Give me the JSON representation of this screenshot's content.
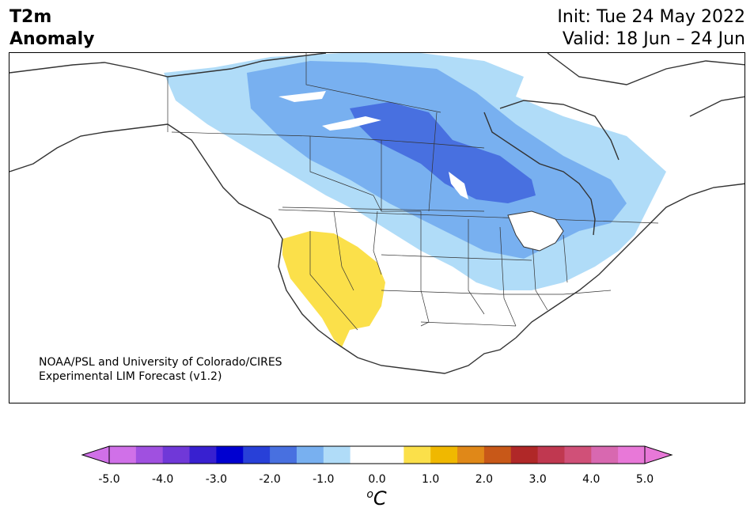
{
  "header": {
    "title_line1": "T2m",
    "title_line2": "Anomaly",
    "init_text": "Init: Tue 24 May 2022",
    "valid_text": "Valid: 18 Jun – 24 Jun"
  },
  "credit": {
    "line1": "NOAA/PSL and University of Colorado/CIRES",
    "line2": "Experimental LIM Forecast (v1.2)"
  },
  "colorbar": {
    "unit_base": "C",
    "unit_sup": "o",
    "ticks": [
      "-5.0",
      "-4.0",
      "-3.0",
      "-2.0",
      "-1.0",
      "0.0",
      "1.0",
      "2.0",
      "3.0",
      "4.0",
      "5.0"
    ],
    "colors": [
      "#d070e8",
      "#a050e0",
      "#7038d8",
      "#3820d0",
      "#0000d0",
      "#2840d8",
      "#4870e0",
      "#78b0f0",
      "#b0dcf8",
      "#ffffff",
      "#ffffff",
      "#fbe04a",
      "#f0b800",
      "#e08818",
      "#c85818",
      "#b02828",
      "#c03850",
      "#d05078",
      "#d868b0",
      "#e878d8"
    ],
    "extend_low_color": "#d070e8",
    "extend_high_color": "#e878d8"
  },
  "map": {
    "anomaly_colors": {
      "light_blue": "#b0dcf8",
      "mid_blue": "#78b0f0",
      "dark_blue": "#4870e0",
      "yellow": "#fbe04a"
    }
  }
}
